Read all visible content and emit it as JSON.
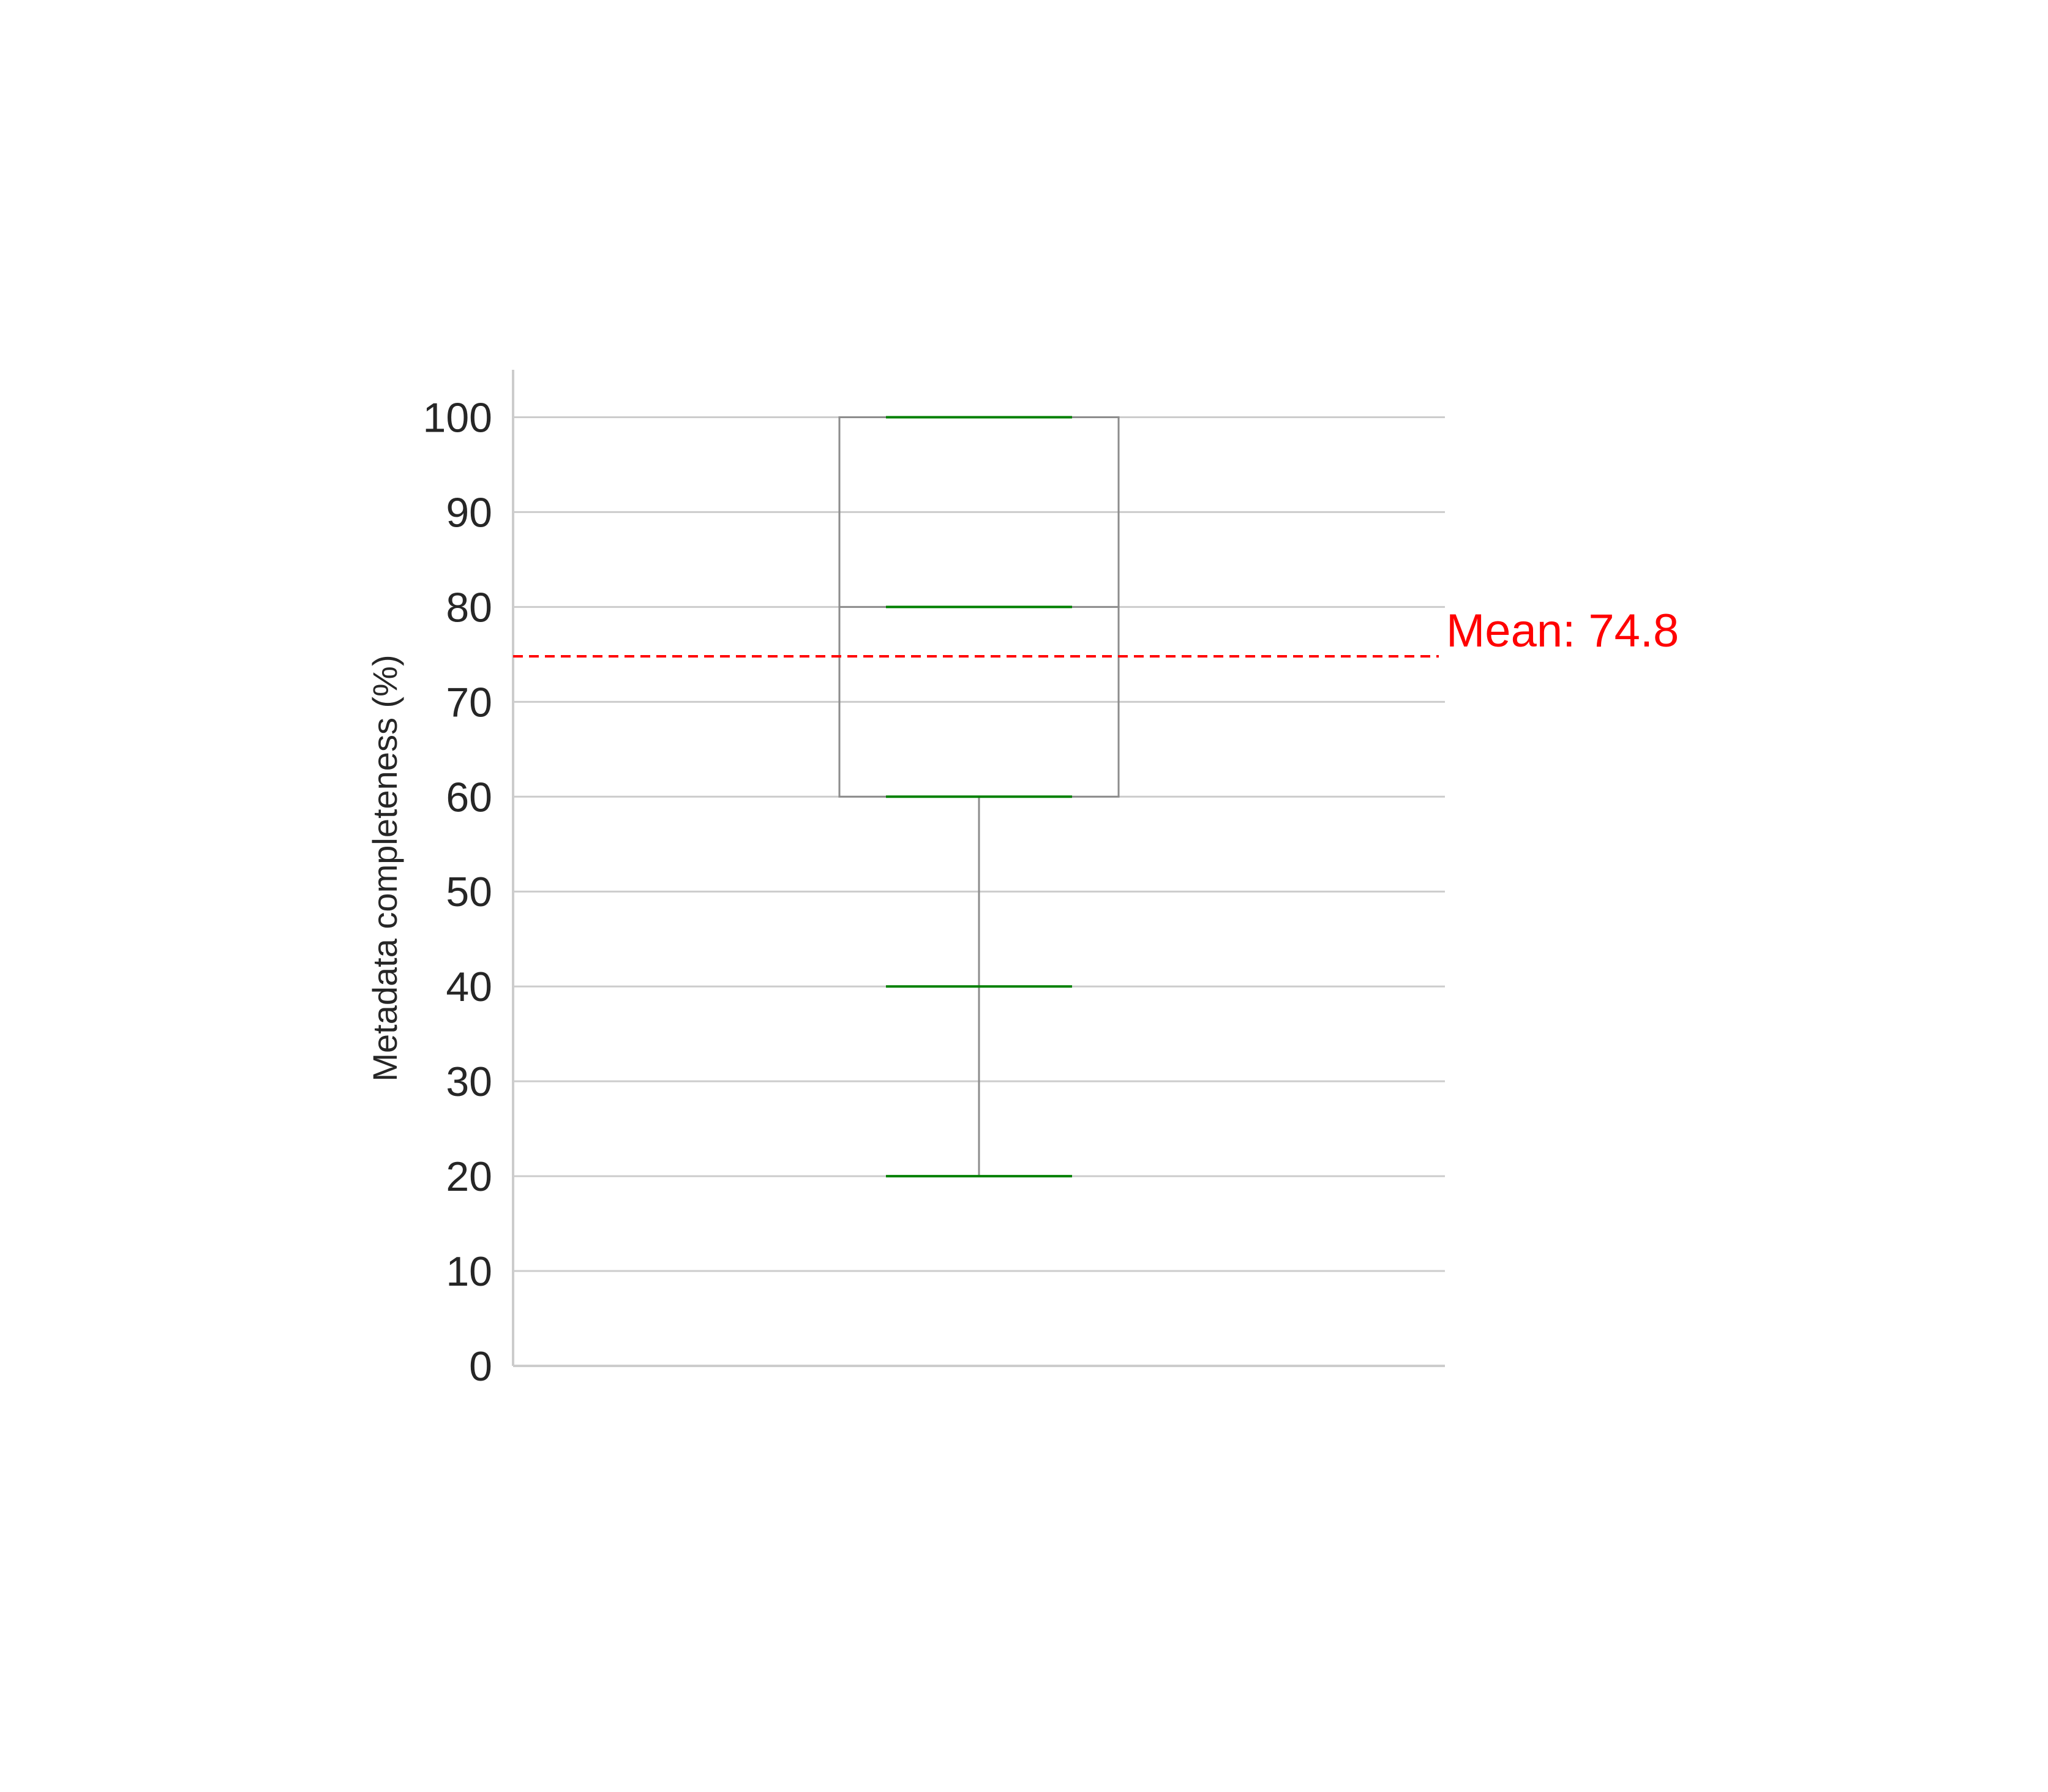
{
  "chart_data": {
    "type": "box",
    "title": "",
    "xlabel": "",
    "ylabel": "Metadata completeness (%)",
    "ylim": [
      0,
      105
    ],
    "yticks": [
      0,
      10,
      20,
      30,
      40,
      50,
      60,
      70,
      80,
      90,
      100
    ],
    "grid": "horizontal",
    "box": {
      "min": 20,
      "q1": 60,
      "median": 80,
      "q3": 100,
      "max": 100
    },
    "data_points": [
      20,
      40,
      60,
      80,
      100
    ],
    "mean": {
      "value": 74.8,
      "label": "Mean: 74.8"
    },
    "colors": {
      "box": "#8c8c8c",
      "points": "#008000",
      "mean_line": "#ff0000",
      "grid": "#cccccc",
      "text": "#262626"
    }
  }
}
